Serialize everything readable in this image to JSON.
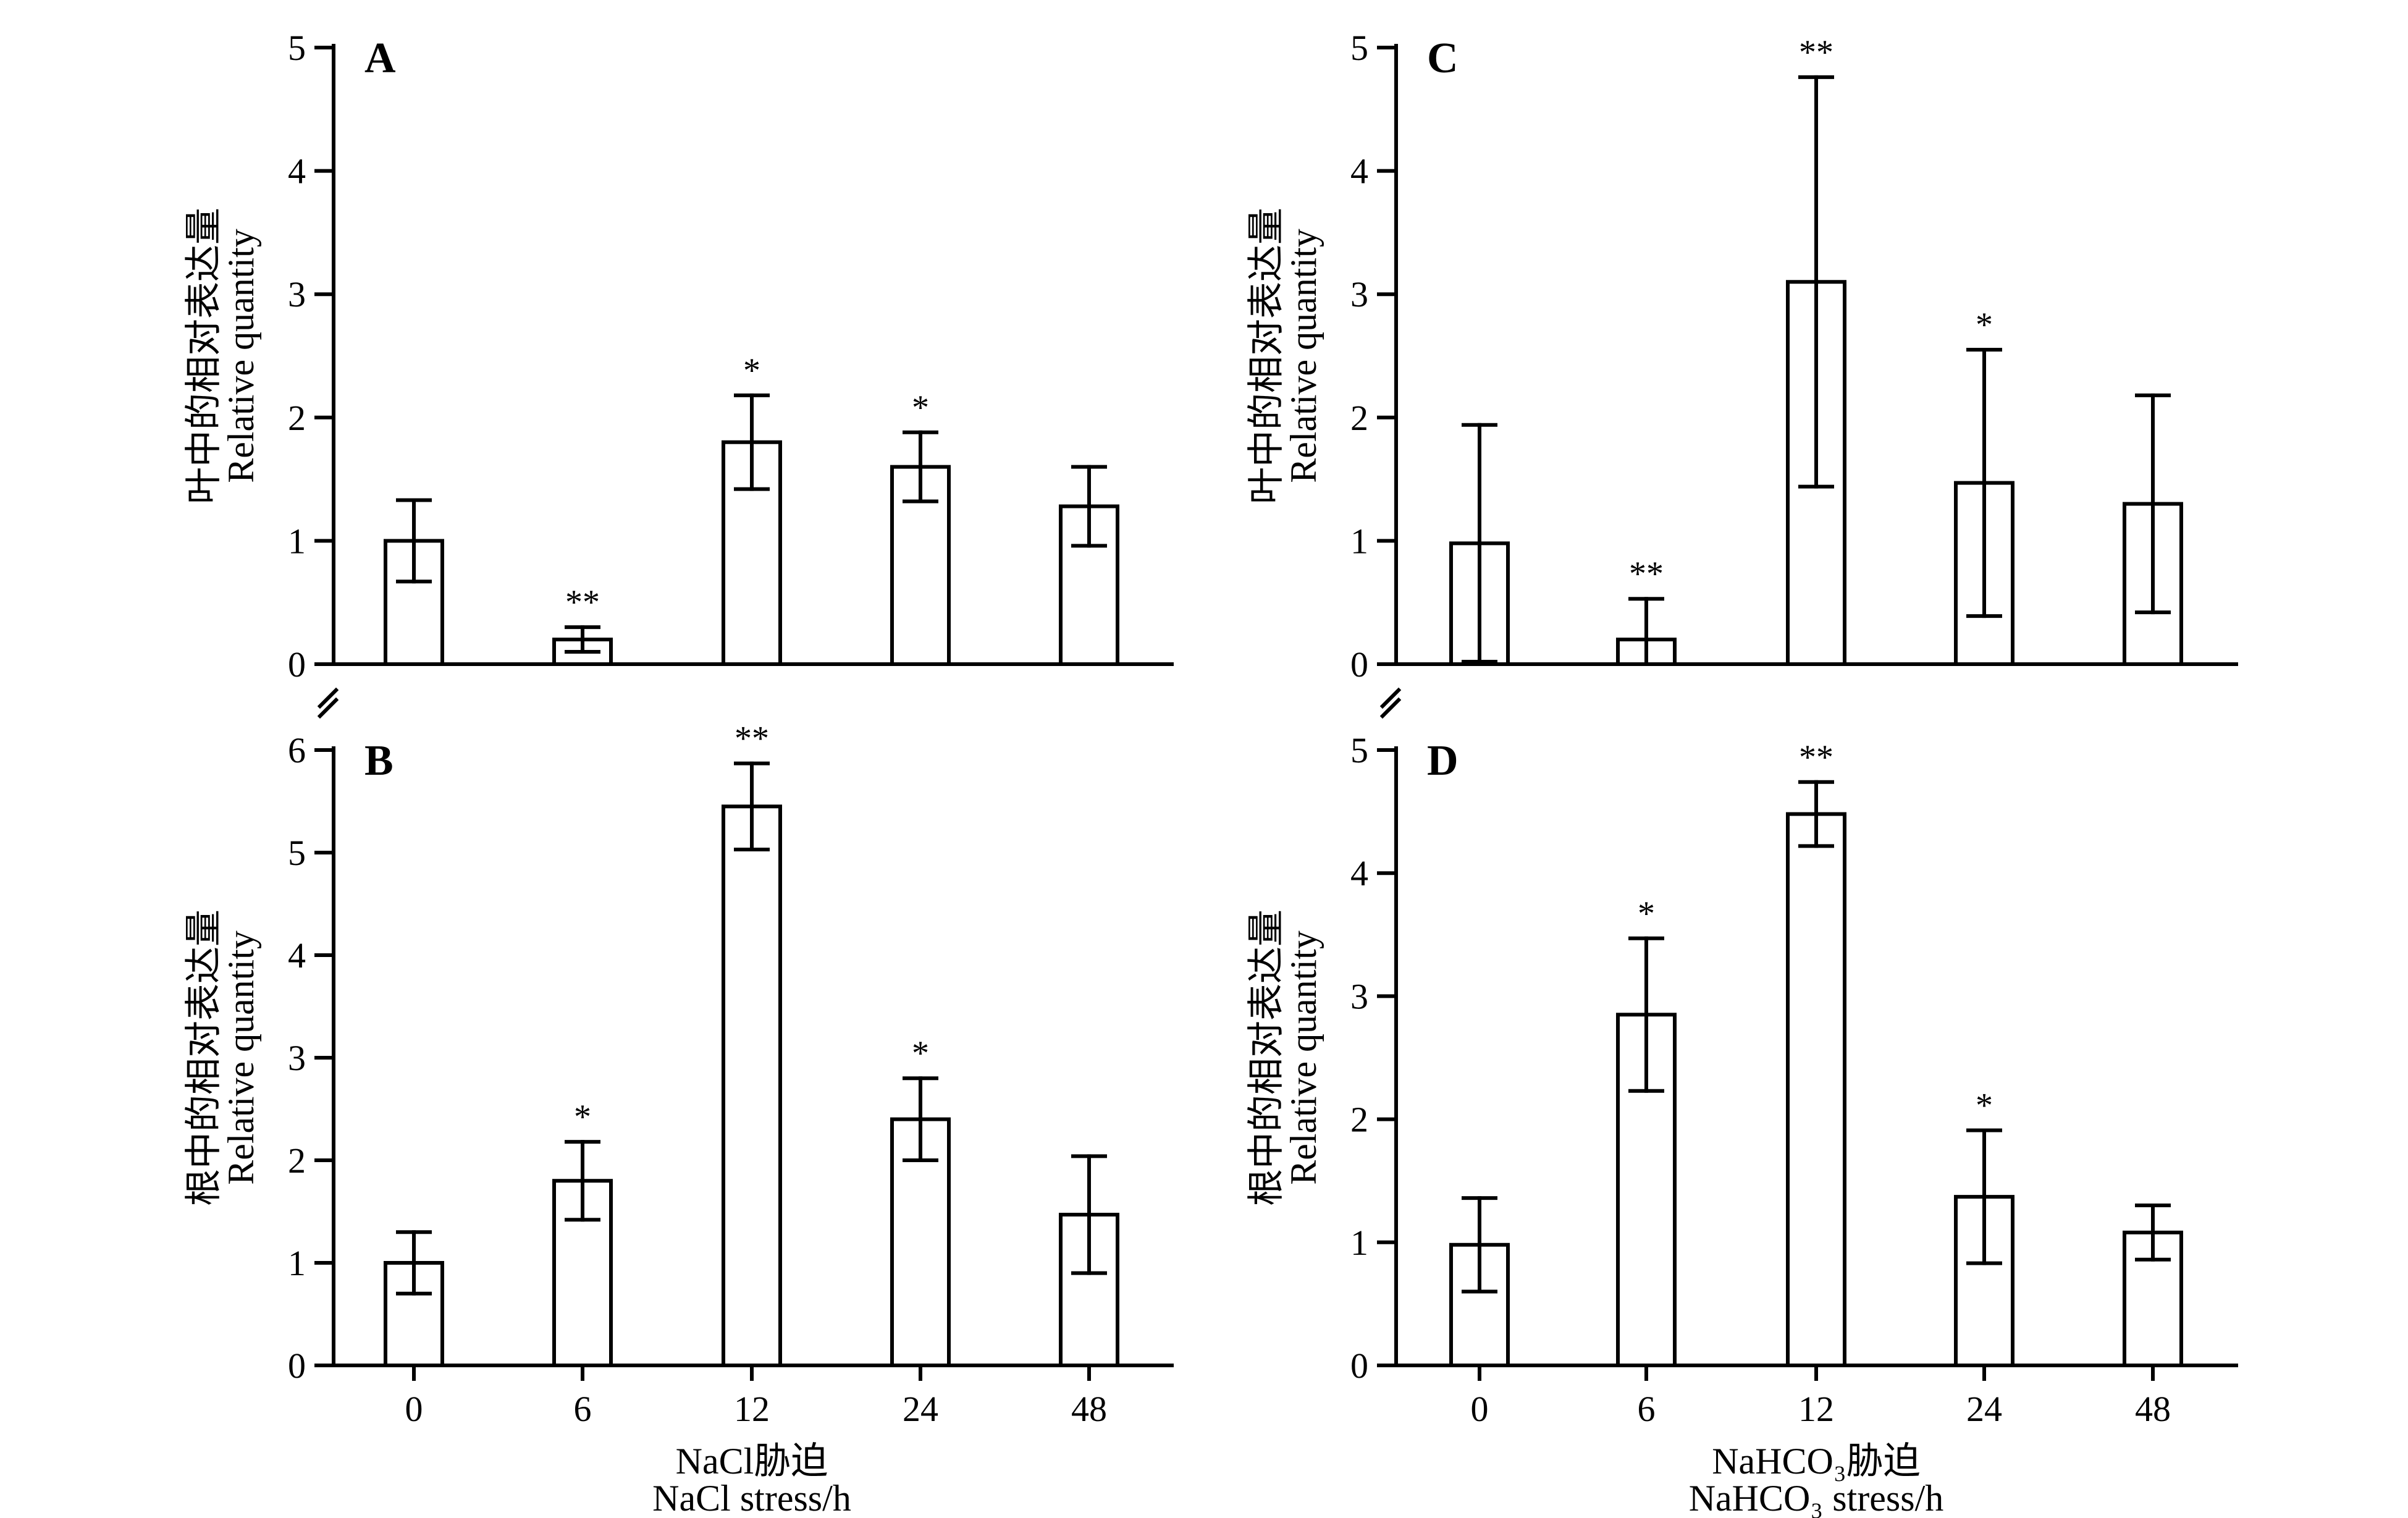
{
  "chart_data": [
    {
      "type": "bar",
      "panel": "A",
      "ylabel_cn": "叶中的相对表达量",
      "ylabel_en": "Relative quantity",
      "categories": [
        "0",
        "6",
        "12",
        "24",
        "48"
      ],
      "values": [
        1.0,
        0.2,
        1.8,
        1.6,
        1.28
      ],
      "errors": [
        0.33,
        0.1,
        0.38,
        0.28,
        0.32
      ],
      "significance": [
        "",
        "**",
        "*",
        "*",
        ""
      ],
      "ylim": [
        0,
        5
      ],
      "yticks": [
        "0",
        "1",
        "2",
        "3",
        "4",
        "5"
      ]
    },
    {
      "type": "bar",
      "panel": "B",
      "ylabel_cn": "根中的相对表达量",
      "ylabel_en": "Relative quantity",
      "xlabel_cn": "NaCl胁迫",
      "xlabel_en": "NaCl stress/h",
      "categories": [
        "0",
        "6",
        "12",
        "24",
        "48"
      ],
      "values": [
        1.0,
        1.8,
        5.45,
        2.4,
        1.47
      ],
      "errors": [
        0.3,
        0.38,
        0.42,
        0.4,
        0.57
      ],
      "significance": [
        "",
        "*",
        "**",
        "*",
        ""
      ],
      "ylim": [
        0,
        6
      ],
      "yticks": [
        "0",
        "1",
        "2",
        "3",
        "4",
        "5",
        "6"
      ]
    },
    {
      "type": "bar",
      "panel": "C",
      "ylabel_cn": "叶中的相对表达量",
      "ylabel_en": "Relative quantity",
      "categories": [
        "0",
        "6",
        "12",
        "24",
        "48"
      ],
      "values": [
        0.98,
        0.2,
        3.1,
        1.47,
        1.3
      ],
      "errors": [
        0.96,
        0.33,
        1.66,
        1.08,
        0.88
      ],
      "significance": [
        "",
        "**",
        "**",
        "*",
        ""
      ],
      "ylim": [
        0,
        5
      ],
      "yticks": [
        "0",
        "1",
        "2",
        "3",
        "4",
        "5"
      ]
    },
    {
      "type": "bar",
      "panel": "D",
      "ylabel_cn": "根中的相对表达量",
      "ylabel_en": "Relative quantity",
      "xlabel_cn": "NaHCO₃胁迫",
      "xlabel_en": "NaHCO₃ stress/h",
      "categories": [
        "0",
        "6",
        "12",
        "24",
        "48"
      ],
      "values": [
        0.98,
        2.85,
        4.48,
        1.37,
        1.08
      ],
      "errors": [
        0.38,
        0.62,
        0.26,
        0.54,
        0.22
      ],
      "significance": [
        "",
        "*",
        "**",
        "*",
        ""
      ],
      "ylim": [
        0,
        5
      ],
      "yticks": [
        "0",
        "1",
        "2",
        "3",
        "4",
        "5"
      ]
    }
  ]
}
